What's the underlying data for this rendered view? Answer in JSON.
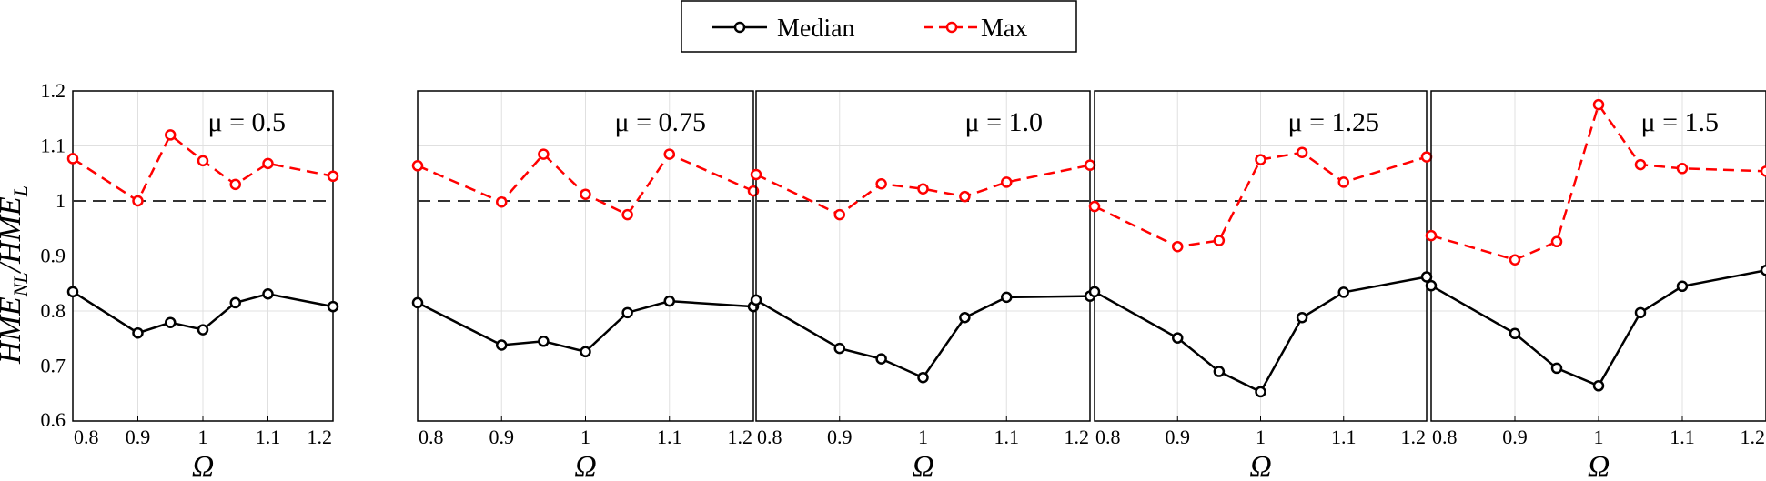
{
  "legend": [
    {
      "name": "Median",
      "color": "#000000",
      "dash": "solid"
    },
    {
      "name": "Max",
      "color": "#ff0000",
      "dash": "dashed"
    }
  ],
  "ylabel": "HME_NL/HME_L",
  "xlabel": "Ω",
  "chart_data": [
    {
      "type": "line",
      "panel_label": "μ = 0.5",
      "x": [
        0.8,
        0.9,
        0.95,
        1.0,
        1.05,
        1.1,
        1.2
      ],
      "series": [
        {
          "name": "Median",
          "color": "#000000",
          "values": [
            0.835,
            0.76,
            0.779,
            0.766,
            0.815,
            0.831,
            0.808
          ]
        },
        {
          "name": "Max",
          "color": "#ff0000",
          "values": [
            1.077,
            1.0,
            1.12,
            1.073,
            1.03,
            1.068,
            1.045
          ]
        }
      ],
      "reference_line": 1.0,
      "xlim": [
        0.8,
        1.2
      ],
      "ylim": [
        0.6,
        1.2
      ],
      "xticks": [
        "0.8",
        "0.9",
        "1",
        "1.1",
        "1.2"
      ],
      "yticks": [
        "0.6",
        "0.7",
        "0.8",
        "0.9",
        "1",
        "1.1",
        "1.2"
      ],
      "grid": true
    },
    {
      "type": "line",
      "panel_label": "μ = 0.75",
      "x": [
        0.8,
        0.9,
        0.95,
        1.0,
        1.05,
        1.1,
        1.2
      ],
      "series": [
        {
          "name": "Median",
          "color": "#000000",
          "values": [
            0.815,
            0.738,
            0.745,
            0.726,
            0.797,
            0.818,
            0.808
          ]
        },
        {
          "name": "Max",
          "color": "#ff0000",
          "values": [
            1.064,
            0.998,
            1.085,
            1.012,
            0.975,
            1.085,
            1.018
          ]
        }
      ],
      "reference_line": 1.0,
      "xlim": [
        0.8,
        1.2
      ],
      "ylim": [
        0.6,
        1.2
      ],
      "xticks": [
        "0.8",
        "0.9",
        "1",
        "1.1",
        "1.2"
      ],
      "grid": true
    },
    {
      "type": "line",
      "panel_label": "μ = 1.0",
      "x": [
        0.8,
        0.9,
        0.95,
        1.0,
        1.05,
        1.1,
        1.2
      ],
      "series": [
        {
          "name": "Median",
          "color": "#000000",
          "values": [
            0.82,
            0.732,
            0.713,
            0.679,
            0.788,
            0.825,
            0.827
          ]
        },
        {
          "name": "Max",
          "color": "#ff0000",
          "values": [
            1.048,
            0.975,
            1.031,
            1.022,
            1.008,
            1.034,
            1.065
          ]
        }
      ],
      "reference_line": 1.0,
      "xlim": [
        0.8,
        1.2
      ],
      "ylim": [
        0.6,
        1.2
      ],
      "xticks": [
        "0.8",
        "0.9",
        "1",
        "1.1",
        "1.2"
      ],
      "grid": true
    },
    {
      "type": "line",
      "panel_label": "μ = 1.25",
      "x": [
        0.8,
        0.9,
        0.95,
        1.0,
        1.05,
        1.1,
        1.2
      ],
      "series": [
        {
          "name": "Median",
          "color": "#000000",
          "values": [
            0.835,
            0.751,
            0.69,
            0.653,
            0.788,
            0.834,
            0.862
          ]
        },
        {
          "name": "Max",
          "color": "#ff0000",
          "values": [
            0.99,
            0.917,
            0.928,
            1.075,
            1.088,
            1.034,
            1.08
          ]
        }
      ],
      "reference_line": 1.0,
      "xlim": [
        0.8,
        1.2
      ],
      "ylim": [
        0.6,
        1.2
      ],
      "xticks": [
        "0.8",
        "0.9",
        "1",
        "1.1",
        "1.2"
      ],
      "grid": true
    },
    {
      "type": "line",
      "panel_label": "μ = 1.5",
      "x": [
        0.8,
        0.9,
        0.95,
        1.0,
        1.05,
        1.1,
        1.2
      ],
      "series": [
        {
          "name": "Median",
          "color": "#000000",
          "values": [
            0.846,
            0.759,
            0.696,
            0.664,
            0.797,
            0.845,
            0.874
          ]
        },
        {
          "name": "Max",
          "color": "#ff0000",
          "values": [
            0.937,
            0.893,
            0.926,
            1.175,
            1.066,
            1.059,
            1.054
          ]
        }
      ],
      "reference_line": 1.0,
      "xlim": [
        0.8,
        1.2
      ],
      "ylim": [
        0.6,
        1.2
      ],
      "xticks": [
        "0.8",
        "0.9",
        "1",
        "1.1",
        "1.2"
      ],
      "grid": true
    }
  ]
}
